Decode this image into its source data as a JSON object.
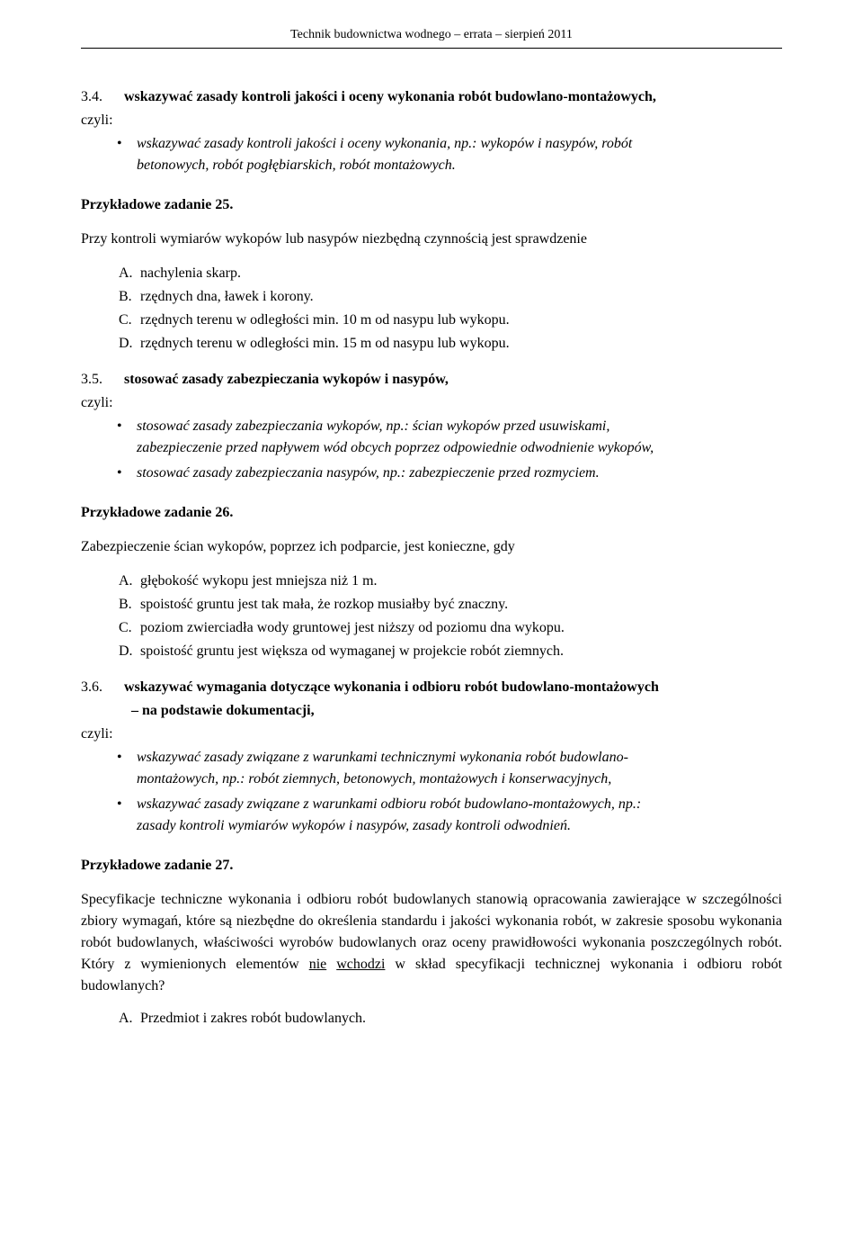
{
  "header": "Technik budownictwa wodnego – errata – sierpień 2011",
  "s34": {
    "num": "3.4.",
    "title": "wskazywać zasady kontroli jakości i oceny wykonania robót budowlano-montażowych,",
    "czyli": "czyli:",
    "bullet1a": "wskazywać zasady kontroli jakości i oceny wykonania, np.: wykopów i nasypów, robót",
    "bullet1b": "betonowych, robót pogłębiarskich, robót montażowych."
  },
  "t25": {
    "title": "Przykładowe zadanie 25.",
    "stem": "Przy kontroli wymiarów wykopów lub nasypów niezbędną czynnością jest sprawdzenie",
    "A": "nachylenia skarp.",
    "B": "rzędnych dna, ławek i korony.",
    "C": "rzędnych terenu w odległości min. 10 m od nasypu lub wykopu.",
    "D": "rzędnych terenu w odległości min. 15 m od nasypu lub wykopu."
  },
  "s35": {
    "num": "3.5.",
    "title": "stosować zasady zabezpieczania wykopów i nasypów,",
    "czyli": "czyli:",
    "b1a": "stosować zasady zabezpieczania wykopów, np.: ścian wykopów przed usuwiskami,",
    "b1b": "zabezpieczenie przed napływem wód obcych poprzez odpowiednie odwodnienie wykopów,",
    "b2": "stosować zasady zabezpieczania nasypów, np.: zabezpieczenie przed rozmyciem."
  },
  "t26": {
    "title": "Przykładowe zadanie 26.",
    "stem": "Zabezpieczenie ścian wykopów, poprzez ich podparcie, jest konieczne, gdy",
    "A": "głębokość wykopu jest mniejsza niż 1 m.",
    "B": "spoistość gruntu jest tak mała, że rozkop musiałby być znaczny.",
    "C": "poziom zwierciadła wody gruntowej jest niższy od poziomu dna wykopu.",
    "D": "spoistość gruntu jest większa od wymaganej w projekcie robót ziemnych."
  },
  "s36": {
    "num": "3.6.",
    "title1": "wskazywać wymagania dotyczące wykonania i odbioru robót budowlano-montażowych",
    "title2": "– na podstawie dokumentacji,",
    "czyli": "czyli:",
    "b1a": "wskazywać zasady związane z warunkami technicznymi wykonania robót budowlano-",
    "b1b": "montażowych, np.: robót ziemnych, betonowych, montażowych i konserwacyjnych,",
    "b2a": "wskazywać zasady związane z warunkami odbioru robót budowlano-montażowych, np.:",
    "b2b": "zasady kontroli wymiarów wykopów i nasypów, zasady kontroli odwodnień."
  },
  "t27": {
    "title": "Przykładowe zadanie 27.",
    "stem1": "Specyfikacje techniczne wykonania i odbioru robót budowlanych stanowią opracowania zawierające w szczególności zbiory wymagań, które są niezbędne do określenia standardu i jakości wykonania robót, w zakresie sposobu wykonania robót budowlanych, właściwości wyrobów budowlanych oraz oceny prawidłowości wykonania poszczególnych robót. Który z wymienionych elementów ",
    "nie": "nie",
    "wchodzi": "wchodzi",
    "stem2": " w skład specyfikacji technicznej wykonania i odbioru robót budowlanych?",
    "A": "Przedmiot i zakres robót budowlanych."
  },
  "letters": {
    "A": "A.",
    "B": "B.",
    "C": "C.",
    "D": "D."
  }
}
